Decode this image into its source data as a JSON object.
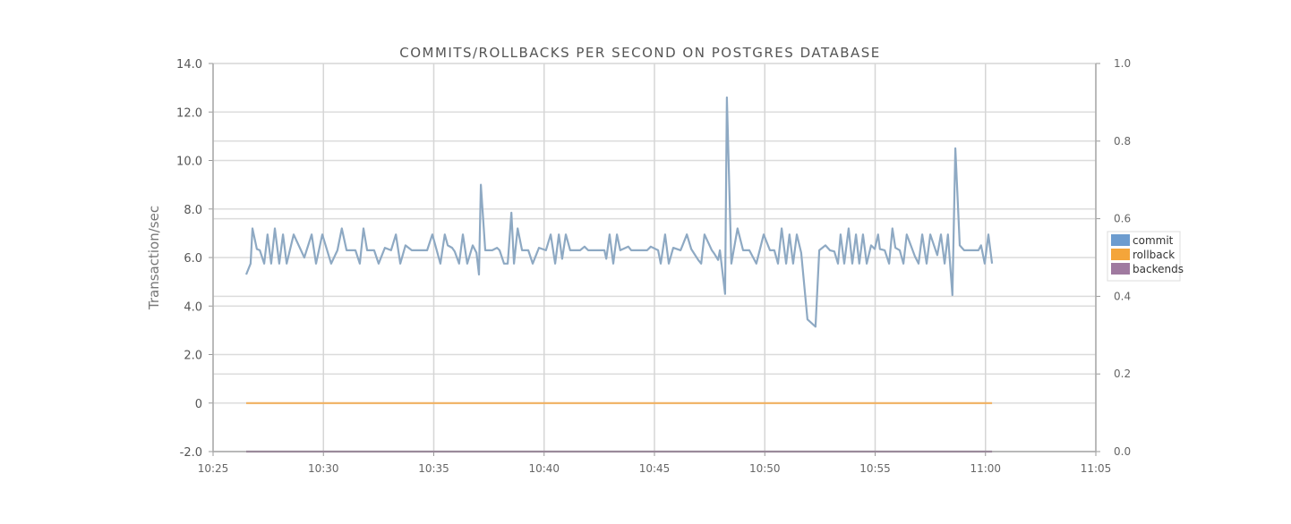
{
  "chart_data": {
    "type": "line",
    "title": "COMMITS/ROLLBACKS PER SECOND ON POSTGRES DATABASE",
    "ylabel": "Transaction/sec",
    "xlabel": "",
    "xlim": [
      "10:25",
      "11:05"
    ],
    "ylim": [
      -2,
      14
    ],
    "y2lim": [
      0,
      1
    ],
    "x_ticks": [
      "10:25",
      "10:30",
      "10:35",
      "10:40",
      "10:45",
      "10:50",
      "10:55",
      "11:00",
      "11:05"
    ],
    "y_ticks": [
      {
        "v": 14,
        "label": "14.0"
      },
      {
        "v": 12,
        "label": "12.0"
      },
      {
        "v": 10,
        "label": "10.0"
      },
      {
        "v": 8,
        "label": "8.0"
      },
      {
        "v": 6,
        "label": "6.0"
      },
      {
        "v": 4,
        "label": "4.0"
      },
      {
        "v": 2,
        "label": "2.0"
      },
      {
        "v": 0,
        "label": "0"
      },
      {
        "v": -2,
        "label": "-2.0"
      }
    ],
    "y2_ticks": [
      {
        "v": 1.0,
        "label": "1.0"
      },
      {
        "v": 0.8,
        "label": "0.8"
      },
      {
        "v": 0.6,
        "label": "0.6"
      },
      {
        "v": 0.4,
        "label": "0.4"
      },
      {
        "v": 0.2,
        "label": "0.2"
      },
      {
        "v": 0.0,
        "label": "0.0"
      }
    ],
    "grid": true,
    "legend_position": "right",
    "series": [
      {
        "name": "commit",
        "color": "#6d9ccf",
        "line_color": "#8ea9c3",
        "axis": "left",
        "points": [
          [
            "10:26:30",
            5.3
          ],
          [
            "10:26:42",
            5.75
          ],
          [
            "10:26:47",
            7.2
          ],
          [
            "10:26:59",
            6.35
          ],
          [
            "10:27:07",
            6.3
          ],
          [
            "10:27:19",
            5.75
          ],
          [
            "10:27:28",
            6.95
          ],
          [
            "10:27:38",
            5.75
          ],
          [
            "10:27:48",
            7.2
          ],
          [
            "10:28:00",
            5.75
          ],
          [
            "10:28:10",
            6.95
          ],
          [
            "10:28:20",
            5.75
          ],
          [
            "10:28:39",
            6.95
          ],
          [
            "10:29:08",
            6.0
          ],
          [
            "10:29:28",
            6.95
          ],
          [
            "10:29:40",
            5.75
          ],
          [
            "10:29:57",
            6.95
          ],
          [
            "10:30:21",
            5.75
          ],
          [
            "10:30:38",
            6.3
          ],
          [
            "10:30:50",
            7.2
          ],
          [
            "10:31:03",
            6.3
          ],
          [
            "10:31:27",
            6.3
          ],
          [
            "10:31:39",
            5.75
          ],
          [
            "10:31:49",
            7.2
          ],
          [
            "10:31:59",
            6.3
          ],
          [
            "10:32:18",
            6.3
          ],
          [
            "10:32:30",
            5.75
          ],
          [
            "10:32:47",
            6.4
          ],
          [
            "10:33:04",
            6.3
          ],
          [
            "10:33:17",
            6.95
          ],
          [
            "10:33:29",
            5.75
          ],
          [
            "10:33:43",
            6.5
          ],
          [
            "10:34:00",
            6.3
          ],
          [
            "10:34:42",
            6.3
          ],
          [
            "10:34:56",
            6.95
          ],
          [
            "10:35:18",
            5.75
          ],
          [
            "10:35:30",
            6.95
          ],
          [
            "10:35:38",
            6.5
          ],
          [
            "10:35:50",
            6.4
          ],
          [
            "10:35:57",
            6.25
          ],
          [
            "10:36:09",
            5.75
          ],
          [
            "10:36:19",
            6.95
          ],
          [
            "10:36:31",
            5.75
          ],
          [
            "10:36:46",
            6.5
          ],
          [
            "10:36:56",
            6.2
          ],
          [
            "10:37:03",
            5.3
          ],
          [
            "10:37:08",
            9.0
          ],
          [
            "10:37:20",
            6.3
          ],
          [
            "10:37:39",
            6.3
          ],
          [
            "10:37:52",
            6.4
          ],
          [
            "10:37:59",
            6.3
          ],
          [
            "10:38:11",
            5.75
          ],
          [
            "10:38:21",
            5.75
          ],
          [
            "10:38:31",
            7.85
          ],
          [
            "10:38:38",
            5.75
          ],
          [
            "10:38:48",
            7.2
          ],
          [
            "10:39:00",
            6.3
          ],
          [
            "10:39:17",
            6.3
          ],
          [
            "10:39:29",
            5.75
          ],
          [
            "10:39:46",
            6.4
          ],
          [
            "10:40:05",
            6.3
          ],
          [
            "10:40:18",
            6.95
          ],
          [
            "10:40:30",
            5.75
          ],
          [
            "10:40:40",
            6.95
          ],
          [
            "10:40:49",
            5.95
          ],
          [
            "10:40:59",
            6.95
          ],
          [
            "10:41:11",
            6.3
          ],
          [
            "10:41:38",
            6.3
          ],
          [
            "10:41:50",
            6.45
          ],
          [
            "10:42:00",
            6.3
          ],
          [
            "10:42:44",
            6.3
          ],
          [
            "10:42:49",
            5.95
          ],
          [
            "10:42:58",
            6.95
          ],
          [
            "10:43:08",
            5.75
          ],
          [
            "10:43:18",
            6.95
          ],
          [
            "10:43:27",
            6.3
          ],
          [
            "10:43:49",
            6.45
          ],
          [
            "10:43:57",
            6.3
          ],
          [
            "10:44:40",
            6.3
          ],
          [
            "10:44:50",
            6.45
          ],
          [
            "10:45:10",
            6.3
          ],
          [
            "10:45:17",
            5.75
          ],
          [
            "10:45:29",
            6.95
          ],
          [
            "10:45:39",
            5.75
          ],
          [
            "10:45:51",
            6.4
          ],
          [
            "10:46:11",
            6.3
          ],
          [
            "10:46:28",
            6.95
          ],
          [
            "10:46:40",
            6.35
          ],
          [
            "10:46:59",
            5.9
          ],
          [
            "10:47:07",
            5.75
          ],
          [
            "10:47:16",
            6.95
          ],
          [
            "10:47:36",
            6.3
          ],
          [
            "10:47:43",
            6.15
          ],
          [
            "10:47:53",
            5.9
          ],
          [
            "10:47:58",
            6.3
          ],
          [
            "10:48:12",
            4.5
          ],
          [
            "10:48:17",
            12.6
          ],
          [
            "10:48:29",
            5.75
          ],
          [
            "10:48:46",
            7.2
          ],
          [
            "10:49:01",
            6.3
          ],
          [
            "10:49:18",
            6.3
          ],
          [
            "10:49:37",
            5.75
          ],
          [
            "10:49:57",
            6.95
          ],
          [
            "10:50:14",
            6.3
          ],
          [
            "10:50:26",
            6.3
          ],
          [
            "10:50:36",
            5.75
          ],
          [
            "10:50:46",
            7.2
          ],
          [
            "10:50:58",
            5.75
          ],
          [
            "10:51:07",
            6.95
          ],
          [
            "10:51:17",
            5.75
          ],
          [
            "10:51:27",
            6.95
          ],
          [
            "10:51:39",
            6.2
          ],
          [
            "10:51:56",
            3.45
          ],
          [
            "10:52:18",
            3.15
          ],
          [
            "10:52:28",
            6.3
          ],
          [
            "10:52:45",
            6.5
          ],
          [
            "10:52:57",
            6.3
          ],
          [
            "10:53:09",
            6.25
          ],
          [
            "10:53:19",
            5.75
          ],
          [
            "10:53:26",
            6.95
          ],
          [
            "10:53:36",
            5.75
          ],
          [
            "10:53:48",
            7.2
          ],
          [
            "10:53:58",
            5.75
          ],
          [
            "10:54:08",
            6.95
          ],
          [
            "10:54:17",
            5.75
          ],
          [
            "10:54:27",
            6.95
          ],
          [
            "10:54:37",
            5.75
          ],
          [
            "10:54:49",
            6.5
          ],
          [
            "10:54:59",
            6.35
          ],
          [
            "10:55:08",
            6.95
          ],
          [
            "10:55:13",
            6.35
          ],
          [
            "10:55:26",
            6.3
          ],
          [
            "10:55:38",
            5.75
          ],
          [
            "10:55:47",
            7.2
          ],
          [
            "10:55:55",
            6.4
          ],
          [
            "10:56:07",
            6.3
          ],
          [
            "10:56:17",
            5.75
          ],
          [
            "10:56:26",
            6.95
          ],
          [
            "10:56:48",
            6.05
          ],
          [
            "10:56:58",
            5.75
          ],
          [
            "10:57:08",
            6.95
          ],
          [
            "10:57:20",
            5.75
          ],
          [
            "10:57:30",
            6.95
          ],
          [
            "10:57:49",
            6.1
          ],
          [
            "10:57:59",
            6.95
          ],
          [
            "10:58:09",
            5.75
          ],
          [
            "10:58:18",
            6.95
          ],
          [
            "10:58:30",
            4.45
          ],
          [
            "10:58:38",
            10.5
          ],
          [
            "10:58:50",
            6.5
          ],
          [
            "10:59:02",
            6.3
          ],
          [
            "10:59:41",
            6.3
          ],
          [
            "10:59:48",
            6.5
          ],
          [
            "10:59:58",
            5.75
          ],
          [
            "11:00:08",
            6.95
          ],
          [
            "11:00:18",
            5.75
          ]
        ]
      },
      {
        "name": "rollback",
        "color": "#f4a53a",
        "line_color": "#f0b060",
        "axis": "left",
        "points": [
          [
            "10:26:30",
            0
          ],
          [
            "11:00:18",
            0
          ]
        ]
      },
      {
        "name": "backends",
        "color": "#a07aa0",
        "line_color": "#9a8a9a",
        "axis": "right",
        "points": [
          [
            "10:26:30",
            0
          ],
          [
            "11:00:18",
            0
          ]
        ]
      }
    ]
  }
}
